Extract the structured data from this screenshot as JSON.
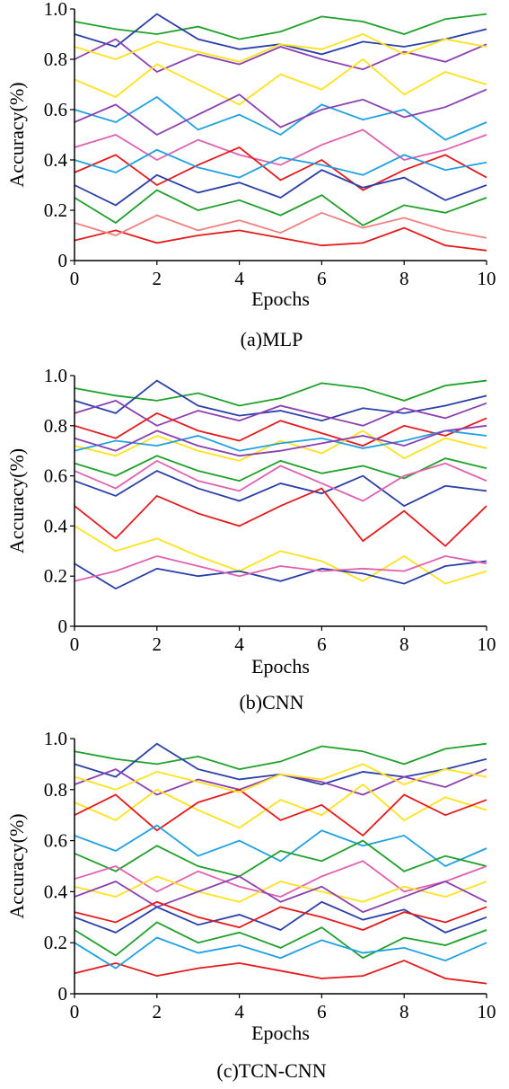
{
  "chart_data": [
    {
      "type": "line",
      "caption": "(a)MLP",
      "x_label": "Epochs",
      "y_label": "Accuracy(%)",
      "x": [
        0,
        1,
        2,
        3,
        4,
        5,
        6,
        7,
        8,
        9,
        10
      ],
      "xlim": [
        0,
        10
      ],
      "xticks": [
        0,
        2,
        4,
        6,
        8,
        10
      ],
      "ylim": [
        0,
        1
      ],
      "yticks": [
        0,
        0.2,
        0.4,
        0.6,
        0.8,
        {
          "value": 1,
          "label": "1.0"
        }
      ],
      "series": [
        {
          "color": "#e41a1c",
          "values": [
            0.08,
            0.12,
            0.07,
            0.1,
            0.12,
            0.09,
            0.06,
            0.07,
            0.13,
            0.06,
            0.04
          ]
        },
        {
          "color": "#1fa02a",
          "values": [
            0.95,
            0.92,
            0.9,
            0.93,
            0.88,
            0.91,
            0.97,
            0.95,
            0.9,
            0.96,
            0.98
          ]
        },
        {
          "color": "#2a3fa8",
          "values": [
            0.9,
            0.85,
            0.98,
            0.88,
            0.84,
            0.86,
            0.82,
            0.87,
            0.85,
            0.88,
            0.92
          ]
        },
        {
          "color": "#8b3fb0",
          "values": [
            0.8,
            0.88,
            0.75,
            0.82,
            0.78,
            0.85,
            0.8,
            0.76,
            0.83,
            0.79,
            0.86
          ]
        },
        {
          "color": "#ffe21a",
          "values": [
            0.72,
            0.65,
            0.78,
            0.7,
            0.62,
            0.74,
            0.68,
            0.8,
            0.66,
            0.75,
            0.7
          ]
        },
        {
          "color": "#1fa0e0",
          "values": [
            0.6,
            0.55,
            0.65,
            0.52,
            0.58,
            0.5,
            0.62,
            0.56,
            0.6,
            0.48,
            0.55
          ]
        },
        {
          "color": "#e060b0",
          "values": [
            0.45,
            0.5,
            0.4,
            0.48,
            0.42,
            0.38,
            0.46,
            0.52,
            0.4,
            0.44,
            0.5
          ]
        },
        {
          "color": "#e41a1c",
          "values": [
            0.35,
            0.42,
            0.3,
            0.38,
            0.45,
            0.32,
            0.4,
            0.28,
            0.36,
            0.42,
            0.33
          ]
        },
        {
          "color": "#1fa02a",
          "values": [
            0.25,
            0.15,
            0.28,
            0.2,
            0.24,
            0.18,
            0.26,
            0.14,
            0.22,
            0.19,
            0.25
          ]
        },
        {
          "color": "#2a3fa8",
          "values": [
            0.3,
            0.22,
            0.34,
            0.27,
            0.31,
            0.25,
            0.36,
            0.29,
            0.33,
            0.24,
            0.3
          ]
        },
        {
          "color": "#f08080",
          "values": [
            0.15,
            0.1,
            0.18,
            0.12,
            0.16,
            0.11,
            0.19,
            0.13,
            0.17,
            0.12,
            0.09
          ]
        },
        {
          "color": "#8b3fb0",
          "values": [
            0.55,
            0.62,
            0.5,
            0.58,
            0.66,
            0.53,
            0.6,
            0.64,
            0.57,
            0.61,
            0.68
          ]
        },
        {
          "color": "#ffe21a",
          "values": [
            0.85,
            0.8,
            0.87,
            0.83,
            0.79,
            0.86,
            0.84,
            0.9,
            0.82,
            0.88,
            0.85
          ]
        },
        {
          "color": "#1fa0e0",
          "values": [
            0.4,
            0.35,
            0.44,
            0.37,
            0.33,
            0.41,
            0.38,
            0.34,
            0.42,
            0.36,
            0.39
          ]
        }
      ]
    },
    {
      "type": "line",
      "caption": "(b)CNN",
      "x_label": "Epochs",
      "y_label": "Accuracy(%)",
      "x": [
        0,
        1,
        2,
        3,
        4,
        5,
        6,
        7,
        8,
        9,
        10
      ],
      "xlim": [
        0,
        10
      ],
      "xticks": [
        0,
        2,
        4,
        6,
        8,
        10
      ],
      "ylim": [
        0,
        1
      ],
      "yticks": [
        0,
        0.2,
        0.4,
        0.6,
        0.8,
        {
          "value": 1,
          "label": "1.0"
        }
      ],
      "series": [
        {
          "color": "#1fa02a",
          "values": [
            0.95,
            0.92,
            0.9,
            0.93,
            0.88,
            0.91,
            0.97,
            0.95,
            0.9,
            0.96,
            0.98
          ]
        },
        {
          "color": "#2a3fa8",
          "values": [
            0.9,
            0.85,
            0.98,
            0.88,
            0.84,
            0.86,
            0.82,
            0.87,
            0.85,
            0.88,
            0.92
          ]
        },
        {
          "color": "#8b3fb0",
          "values": [
            0.85,
            0.9,
            0.8,
            0.86,
            0.82,
            0.88,
            0.84,
            0.8,
            0.87,
            0.83,
            0.89
          ]
        },
        {
          "color": "#e41a1c",
          "values": [
            0.8,
            0.75,
            0.85,
            0.78,
            0.74,
            0.82,
            0.77,
            0.72,
            0.8,
            0.76,
            0.83
          ]
        },
        {
          "color": "#ffe21a",
          "values": [
            0.72,
            0.68,
            0.76,
            0.7,
            0.66,
            0.74,
            0.69,
            0.78,
            0.67,
            0.75,
            0.71
          ]
        },
        {
          "color": "#1fa0e0",
          "values": [
            0.7,
            0.74,
            0.72,
            0.76,
            0.7,
            0.73,
            0.75,
            0.71,
            0.74,
            0.78,
            0.76
          ]
        },
        {
          "color": "#1fa02a",
          "values": [
            0.65,
            0.6,
            0.68,
            0.62,
            0.58,
            0.66,
            0.61,
            0.64,
            0.59,
            0.67,
            0.63
          ]
        },
        {
          "color": "#2a3fa8",
          "values": [
            0.58,
            0.52,
            0.62,
            0.55,
            0.5,
            0.57,
            0.53,
            0.6,
            0.48,
            0.56,
            0.54
          ]
        },
        {
          "color": "#e060b0",
          "values": [
            0.62,
            0.55,
            0.66,
            0.58,
            0.54,
            0.64,
            0.57,
            0.5,
            0.6,
            0.65,
            0.58
          ]
        },
        {
          "color": "#e41a1c",
          "values": [
            0.48,
            0.35,
            0.52,
            0.45,
            0.4,
            0.48,
            0.55,
            0.34,
            0.46,
            0.32,
            0.48
          ]
        },
        {
          "color": "#ffe21a",
          "values": [
            0.4,
            0.3,
            0.35,
            0.28,
            0.22,
            0.3,
            0.26,
            0.18,
            0.28,
            0.17,
            0.22
          ]
        },
        {
          "color": "#2a3fa8",
          "values": [
            0.25,
            0.15,
            0.23,
            0.2,
            0.22,
            0.18,
            0.23,
            0.21,
            0.17,
            0.24,
            0.26
          ]
        },
        {
          "color": "#e060b0",
          "values": [
            0.18,
            0.22,
            0.28,
            0.24,
            0.2,
            0.24,
            0.22,
            0.23,
            0.22,
            0.28,
            0.25
          ]
        },
        {
          "color": "#8b3fb0",
          "values": [
            0.75,
            0.7,
            0.78,
            0.72,
            0.68,
            0.7,
            0.73,
            0.76,
            0.72,
            0.78,
            0.8
          ]
        }
      ]
    },
    {
      "type": "line",
      "caption": "(c)TCN-CNN",
      "x_label": "Epochs",
      "y_label": "Accuracy(%)",
      "x": [
        0,
        1,
        2,
        3,
        4,
        5,
        6,
        7,
        8,
        9,
        10
      ],
      "xlim": [
        0,
        10
      ],
      "xticks": [
        0,
        2,
        4,
        6,
        8,
        10
      ],
      "ylim": [
        0,
        1
      ],
      "yticks": [
        0,
        0.2,
        0.4,
        0.6,
        0.8,
        {
          "value": 1,
          "label": "1.0"
        }
      ],
      "series": [
        {
          "color": "#e41a1c",
          "values": [
            0.08,
            0.12,
            0.07,
            0.1,
            0.12,
            0.09,
            0.06,
            0.07,
            0.13,
            0.06,
            0.04
          ]
        },
        {
          "color": "#1fa02a",
          "values": [
            0.95,
            0.92,
            0.9,
            0.93,
            0.88,
            0.91,
            0.97,
            0.95,
            0.9,
            0.96,
            0.98
          ]
        },
        {
          "color": "#2a3fa8",
          "values": [
            0.9,
            0.85,
            0.98,
            0.88,
            0.84,
            0.86,
            0.82,
            0.87,
            0.85,
            0.88,
            0.92
          ]
        },
        {
          "color": "#8b3fb0",
          "values": [
            0.82,
            0.88,
            0.78,
            0.84,
            0.8,
            0.86,
            0.83,
            0.78,
            0.85,
            0.81,
            0.88
          ]
        },
        {
          "color": "#ffe21a",
          "values": [
            0.75,
            0.68,
            0.8,
            0.72,
            0.65,
            0.76,
            0.7,
            0.82,
            0.68,
            0.77,
            0.72
          ]
        },
        {
          "color": "#e41a1c",
          "values": [
            0.7,
            0.78,
            0.64,
            0.75,
            0.8,
            0.68,
            0.74,
            0.62,
            0.78,
            0.7,
            0.76
          ]
        },
        {
          "color": "#1fa0e0",
          "values": [
            0.62,
            0.56,
            0.66,
            0.54,
            0.6,
            0.52,
            0.64,
            0.58,
            0.62,
            0.5,
            0.57
          ]
        },
        {
          "color": "#1fa02a",
          "values": [
            0.55,
            0.48,
            0.58,
            0.5,
            0.46,
            0.56,
            0.52,
            0.6,
            0.48,
            0.54,
            0.5
          ]
        },
        {
          "color": "#e060b0",
          "values": [
            0.45,
            0.5,
            0.4,
            0.48,
            0.42,
            0.38,
            0.46,
            0.52,
            0.4,
            0.44,
            0.5
          ]
        },
        {
          "color": "#ffe21a",
          "values": [
            0.42,
            0.38,
            0.46,
            0.4,
            0.36,
            0.44,
            0.4,
            0.36,
            0.42,
            0.38,
            0.44
          ]
        },
        {
          "color": "#8b3fb0",
          "values": [
            0.38,
            0.44,
            0.34,
            0.4,
            0.46,
            0.36,
            0.42,
            0.32,
            0.38,
            0.44,
            0.36
          ]
        },
        {
          "color": "#2a3fa8",
          "values": [
            0.3,
            0.24,
            0.34,
            0.27,
            0.31,
            0.25,
            0.36,
            0.29,
            0.33,
            0.24,
            0.3
          ]
        },
        {
          "color": "#1fa02a",
          "values": [
            0.25,
            0.15,
            0.28,
            0.2,
            0.24,
            0.18,
            0.26,
            0.14,
            0.22,
            0.19,
            0.25
          ]
        },
        {
          "color": "#1fa0e0",
          "values": [
            0.2,
            0.1,
            0.22,
            0.16,
            0.19,
            0.14,
            0.21,
            0.16,
            0.18,
            0.13,
            0.2
          ]
        },
        {
          "color": "#e41a1c",
          "values": [
            0.32,
            0.28,
            0.36,
            0.3,
            0.26,
            0.34,
            0.3,
            0.25,
            0.32,
            0.28,
            0.34
          ]
        },
        {
          "color": "#ffe21a",
          "values": [
            0.85,
            0.8,
            0.87,
            0.83,
            0.79,
            0.86,
            0.84,
            0.9,
            0.82,
            0.88,
            0.85
          ]
        }
      ]
    }
  ]
}
